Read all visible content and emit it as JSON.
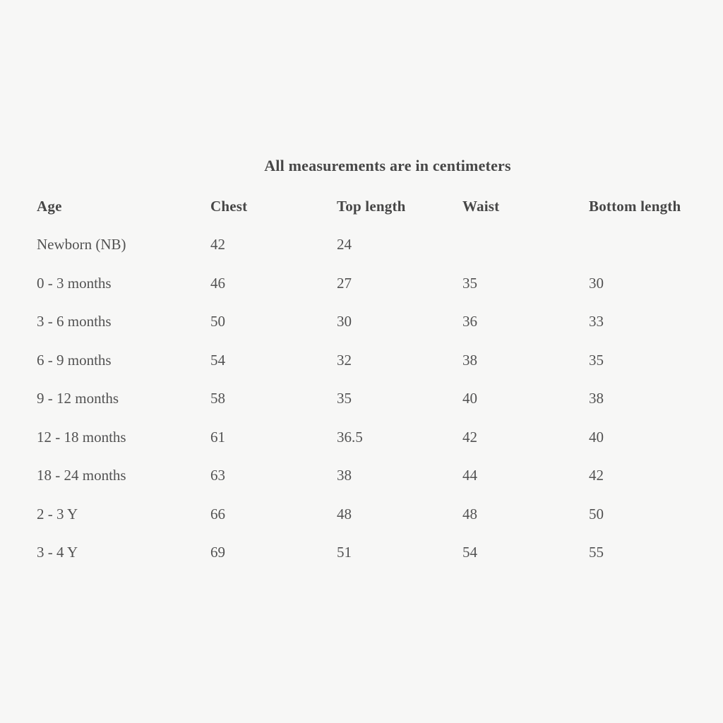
{
  "title": "All measurements are in centimeters",
  "table": {
    "columns": [
      "Age",
      "Chest",
      "Top length",
      "Waist",
      "Bottom length"
    ],
    "rows": [
      {
        "age": "Newborn (NB)",
        "chest": "42",
        "top_length": "24",
        "waist": "",
        "bottom_length": ""
      },
      {
        "age": "0 - 3 months",
        "chest": "46",
        "top_length": "27",
        "waist": "35",
        "bottom_length": "30"
      },
      {
        "age": "3 - 6 months",
        "chest": "50",
        "top_length": "30",
        "waist": "36",
        "bottom_length": "33"
      },
      {
        "age": "6 - 9 months",
        "chest": "54",
        "top_length": "32",
        "waist": "38",
        "bottom_length": "35"
      },
      {
        "age": "9 - 12 months",
        "chest": "58",
        "top_length": "35",
        "waist": "40",
        "bottom_length": "38"
      },
      {
        "age": "12 - 18 months",
        "chest": "61",
        "top_length": "36.5",
        "waist": "42",
        "bottom_length": "40"
      },
      {
        "age": "18 - 24 months",
        "chest": "63",
        "top_length": "38",
        "waist": "44",
        "bottom_length": "42"
      },
      {
        "age": "2 - 3 Y",
        "chest": "66",
        "top_length": "48",
        "waist": "48",
        "bottom_length": "50"
      },
      {
        "age": "3 - 4 Y",
        "chest": "69",
        "top_length": "51",
        "waist": "54",
        "bottom_length": "55"
      }
    ]
  },
  "colors": {
    "background": "#f7f7f6",
    "heading_text": "#474747",
    "body_text": "#525252"
  }
}
